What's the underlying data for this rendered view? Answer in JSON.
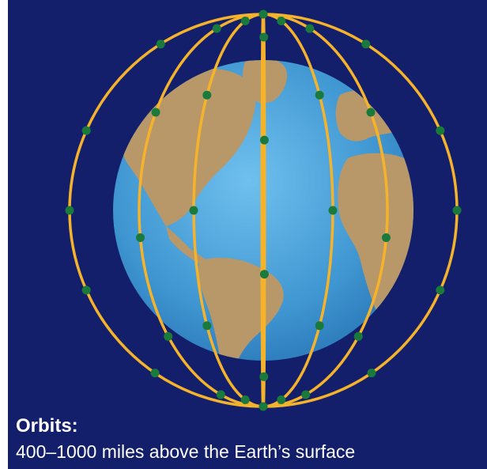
{
  "caption": {
    "title": "Orbits:",
    "body": "400–1000 miles above the Earth’s surface"
  },
  "colors": {
    "background": "#131f6b",
    "orbit": "#f5b32c",
    "satellite": "#1a7a3c",
    "ocean": "#4aa0d8",
    "land": "#b89868"
  },
  "constellation": {
    "orbit_planes": 6,
    "satellites_per_plane": 11
  }
}
